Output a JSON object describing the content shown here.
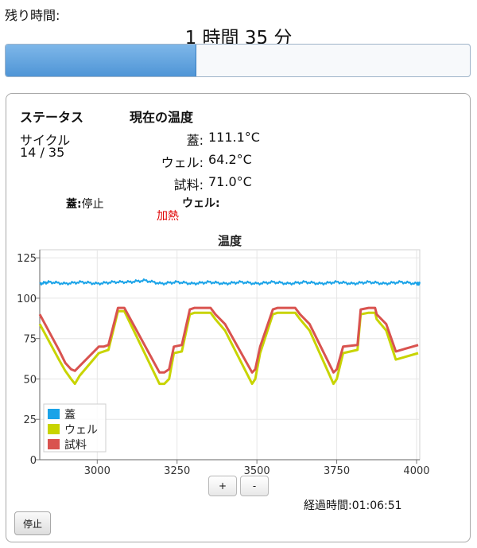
{
  "remaining": {
    "label": "残り時間:",
    "value": "1 時間 35 分",
    "progress_fraction": 0.41
  },
  "status": {
    "heading": "ステータス",
    "cycle_label": "サイクル",
    "cycle_value": "14 / 35",
    "lid_state_label": "蓋:",
    "lid_state_value": "停止",
    "well_state_label": "ウェル:",
    "well_state_value": "加熱"
  },
  "temps": {
    "heading": "現在の温度",
    "rows": [
      {
        "label": "蓋:",
        "value": "111.1°C"
      },
      {
        "label": "ウェル:",
        "value": "64.2°C"
      },
      {
        "label": "試料:",
        "value": "71.0°C"
      }
    ]
  },
  "zoom": {
    "in_label": "+",
    "out_label": "-"
  },
  "elapsed": {
    "text": "経過時間:01:06:51"
  },
  "stop_button": {
    "label": "停止"
  },
  "colors": {
    "lid": "#1aa3e8",
    "well": "#c8d400",
    "sample": "#d9534f",
    "heating": "#e00000"
  },
  "chart_data": {
    "type": "line",
    "title": "温度",
    "xlabel": "",
    "ylabel": "",
    "xlim": [
      2820,
      4010
    ],
    "ylim": [
      0,
      130
    ],
    "x_ticks": [
      3000,
      3250,
      3500,
      3750,
      4000
    ],
    "y_ticks": [
      0,
      25,
      50,
      75,
      100,
      125
    ],
    "grid": true,
    "legend_position": "bottom-left",
    "series": [
      {
        "name": "蓋",
        "x": [
          2820,
          2850,
          2900,
          2950,
          3000,
          3050,
          3100,
          3150,
          3200,
          3250,
          3300,
          3350,
          3400,
          3450,
          3500,
          3550,
          3600,
          3650,
          3700,
          3750,
          3800,
          3850,
          3900,
          3950,
          4000,
          4010
        ],
        "y": [
          109,
          110,
          109,
          110,
          109,
          110,
          110,
          111,
          109,
          110,
          109,
          110,
          109,
          110,
          109,
          110,
          109,
          110,
          109,
          110,
          109,
          110,
          109,
          110,
          109,
          109
        ]
      },
      {
        "name": "ウェル",
        "x": [
          2820,
          2880,
          2900,
          2918,
          2930,
          2945,
          3005,
          3020,
          3035,
          3065,
          3085,
          3195,
          3210,
          3225,
          3240,
          3265,
          3290,
          3305,
          3355,
          3370,
          3400,
          3485,
          3495,
          3510,
          3550,
          3565,
          3620,
          3635,
          3665,
          3740,
          3750,
          3770,
          3815,
          3825,
          3850,
          3870,
          3875,
          3905,
          3935,
          4005
        ],
        "y": [
          84,
          62,
          55,
          50,
          47,
          52,
          66,
          67,
          68,
          92,
          92,
          47,
          47,
          50,
          66,
          67,
          90,
          91,
          91,
          87,
          80,
          47,
          50,
          66,
          90,
          91,
          91,
          87,
          80,
          47,
          50,
          66,
          68,
          90,
          91,
          91,
          87,
          80,
          62,
          66
        ]
      },
      {
        "name": "試料",
        "x": [
          2820,
          2880,
          2900,
          2918,
          2930,
          2945,
          3005,
          3020,
          3035,
          3065,
          3085,
          3195,
          3210,
          3225,
          3240,
          3265,
          3290,
          3305,
          3355,
          3370,
          3400,
          3485,
          3495,
          3510,
          3550,
          3565,
          3620,
          3635,
          3665,
          3740,
          3750,
          3770,
          3815,
          3825,
          3850,
          3870,
          3875,
          3905,
          3935,
          4005
        ],
        "y": [
          90,
          68,
          60,
          56,
          55,
          58,
          70,
          70,
          71,
          94,
          94,
          54,
          54,
          56,
          70,
          71,
          93,
          94,
          94,
          90,
          84,
          54,
          56,
          70,
          93,
          94,
          94,
          90,
          84,
          54,
          56,
          70,
          71,
          93,
          94,
          94,
          90,
          84,
          67,
          71
        ]
      }
    ]
  }
}
